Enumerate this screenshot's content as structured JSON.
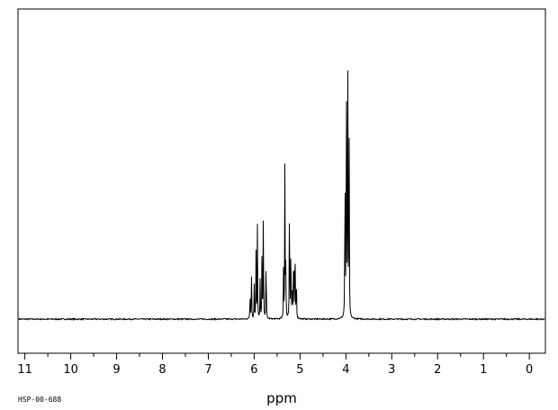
{
  "chart_data": {
    "type": "line",
    "title": "",
    "xlabel": "ppm",
    "ylabel": "",
    "x_reversed": true,
    "xlim": [
      11.15,
      -0.35
    ],
    "ylim": [
      -0.11,
      1.0
    ],
    "x_ticks": [
      11,
      10,
      9,
      8,
      7,
      6,
      5,
      4,
      3,
      2,
      1,
      0
    ],
    "x_tick_labels": [
      "11",
      "10",
      "9",
      "8",
      "7",
      "6",
      "5",
      "4",
      "3",
      "2",
      "1",
      "0"
    ],
    "minor_tick_step": 0.5,
    "grid": false,
    "legend": "none",
    "line_color": "#000000",
    "spectrum_code": "HSP-00-688",
    "series": [
      {
        "peaks": [
          {
            "ppm": 6.09,
            "height": 0.09
          },
          {
            "ppm": 6.06,
            "height": 0.18
          },
          {
            "ppm": 6.0,
            "height": 0.12
          },
          {
            "ppm": 5.96,
            "height": 0.22
          },
          {
            "ppm": 5.93,
            "height": 0.3
          },
          {
            "ppm": 5.87,
            "height": 0.13
          },
          {
            "ppm": 5.83,
            "height": 0.22
          },
          {
            "ppm": 5.8,
            "height": 0.39
          },
          {
            "ppm": 5.74,
            "height": 0.24
          },
          {
            "ppm": 5.36,
            "height": 0.16
          },
          {
            "ppm": 5.33,
            "height": 0.53
          },
          {
            "ppm": 5.31,
            "height": 0.18
          },
          {
            "ppm": 5.23,
            "height": 0.45
          },
          {
            "ppm": 5.2,
            "height": 0.3
          },
          {
            "ppm": 5.17,
            "height": 0.14
          },
          {
            "ppm": 5.14,
            "height": 0.3
          },
          {
            "ppm": 5.11,
            "height": 0.32
          },
          {
            "ppm": 5.08,
            "height": 0.15
          },
          {
            "ppm": 4.02,
            "height": 0.6
          },
          {
            "ppm": 3.99,
            "height": 0.95
          },
          {
            "ppm": 3.96,
            "height": 0.98
          },
          {
            "ppm": 3.93,
            "height": 0.65
          }
        ]
      }
    ]
  }
}
